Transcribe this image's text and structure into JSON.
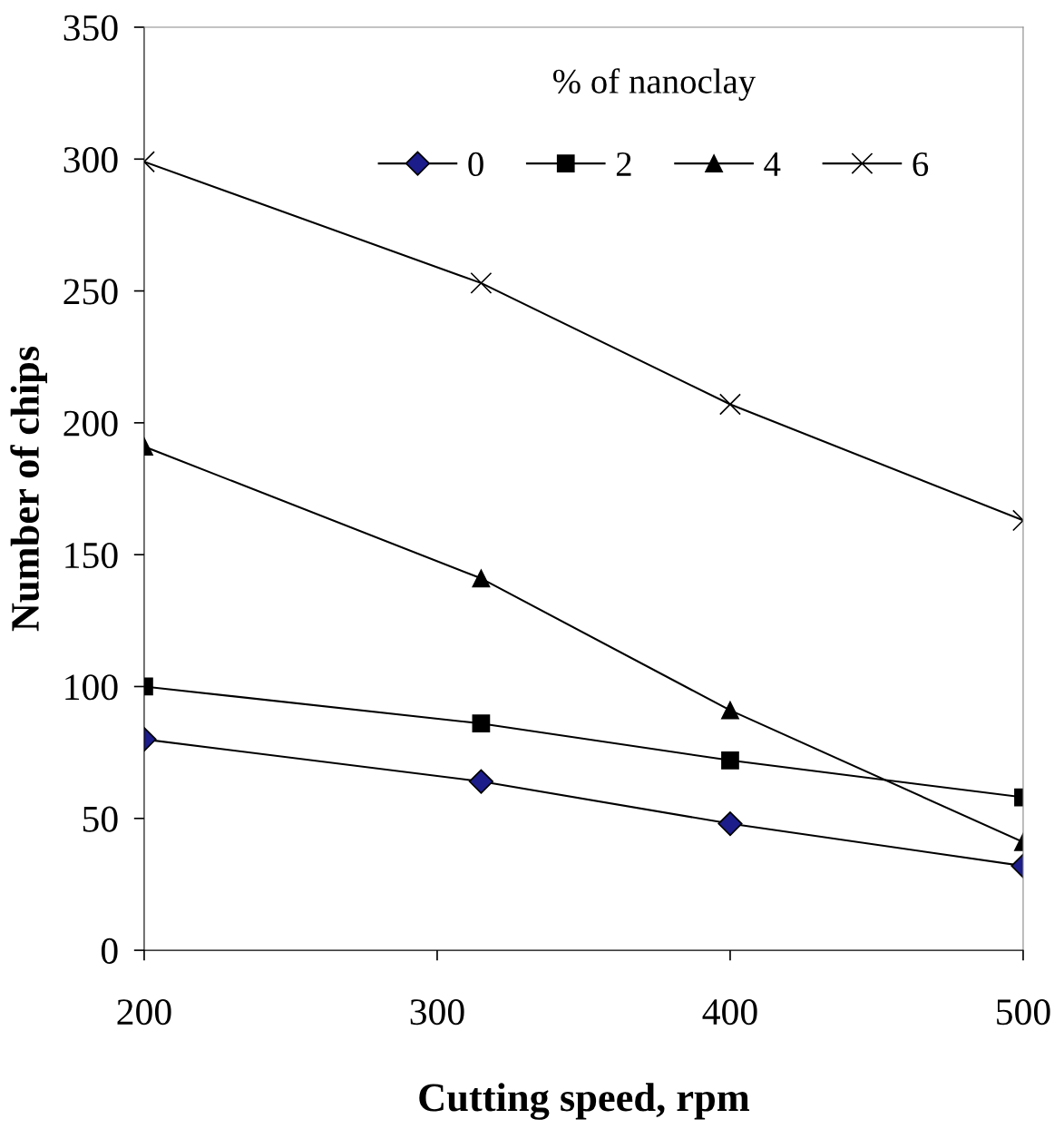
{
  "chart_data": {
    "type": "line",
    "xlabel": "Cutting speed, rpm",
    "ylabel": "Number of chips",
    "legend_title": "% of nanoclay",
    "legend": "top",
    "x": [
      200,
      315,
      400,
      500
    ],
    "xlim": [
      200,
      500
    ],
    "xticks": [
      200,
      300,
      400,
      500
    ],
    "ylim": [
      0,
      350
    ],
    "yticks": [
      0,
      50,
      100,
      150,
      200,
      250,
      300,
      350
    ],
    "grid": false,
    "series": [
      {
        "name": "0",
        "color": "#1c1c8a",
        "marker": "diamond",
        "values": [
          80,
          64,
          48,
          32
        ]
      },
      {
        "name": "2",
        "color": "#000000",
        "marker": "square",
        "values": [
          100,
          86,
          72,
          58
        ]
      },
      {
        "name": "4",
        "color": "#000000",
        "marker": "triangle",
        "values": [
          191,
          141,
          91,
          41
        ]
      },
      {
        "name": "6",
        "color": "#000000",
        "marker": "cross",
        "values": [
          299,
          253,
          207,
          163
        ]
      }
    ]
  }
}
